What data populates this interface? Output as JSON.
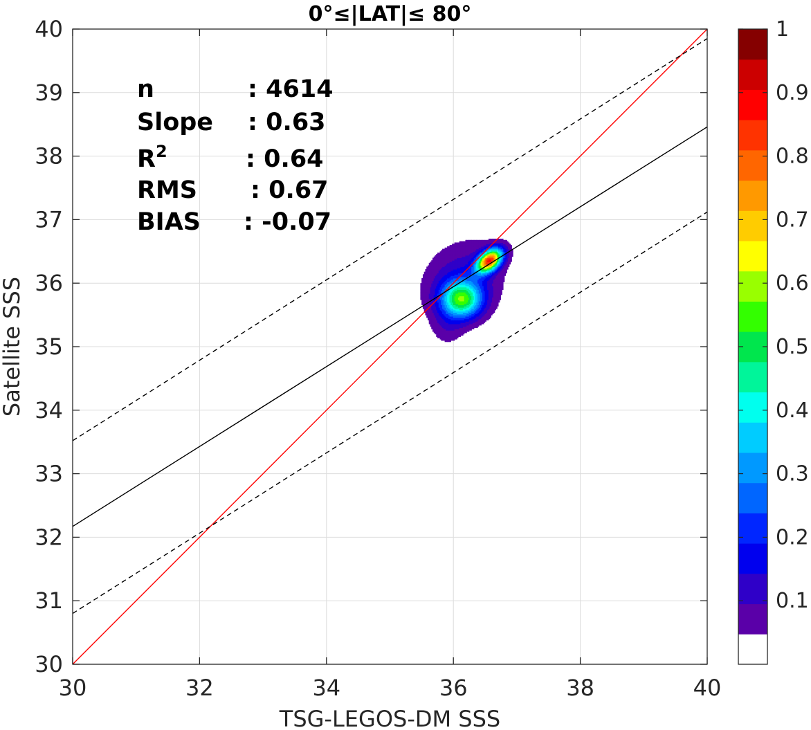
{
  "chart_data": {
    "type": "scatter",
    "title": "0°≤|LAT|≤ 80°",
    "xlabel": "TSG-LEGOS-DM SSS",
    "ylabel": "Satellite SSS",
    "xlim": [
      30,
      40
    ],
    "ylim": [
      30,
      40
    ],
    "xticks": [
      30,
      32,
      34,
      36,
      38,
      40
    ],
    "yticks": [
      30,
      31,
      32,
      33,
      34,
      35,
      36,
      37,
      38,
      39,
      40
    ],
    "grid": true,
    "stats": [
      {
        "name": "n",
        "sep": ": 4614",
        "sup": ""
      },
      {
        "name": "Slope",
        "sep": ": 0.63",
        "sup": ""
      },
      {
        "name": "R",
        "sep": ": 0.64",
        "sup": "2"
      },
      {
        "name": "RMS",
        "sep": ": 0.67",
        "sup": ""
      },
      {
        "name": "BIAS",
        "sep": ": -0.07",
        "sup": ""
      }
    ],
    "lines": [
      {
        "name": "one-to-one",
        "color": "#ff0000",
        "dash": false,
        "points": [
          [
            30,
            30
          ],
          [
            40,
            40
          ]
        ]
      },
      {
        "name": "regression",
        "color": "#000000",
        "dash": false,
        "points": [
          [
            30,
            32.17
          ],
          [
            40,
            38.46
          ]
        ]
      },
      {
        "name": "upper-bound",
        "color": "#000000",
        "dash": true,
        "points": [
          [
            30,
            33.52
          ],
          [
            40,
            39.85
          ]
        ]
      },
      {
        "name": "lower-bound",
        "color": "#000000",
        "dash": true,
        "points": [
          [
            30,
            30.8
          ],
          [
            40,
            37.12
          ]
        ]
      }
    ],
    "density_contours": {
      "peak": [
        36.57,
        36.36
      ],
      "secondary_peak": [
        36.13,
        35.75
      ],
      "levels": [
        0.05,
        0.1,
        0.15,
        0.2,
        0.25,
        0.3,
        0.35,
        0.4,
        0.45,
        0.5,
        0.55,
        0.6,
        0.65,
        0.7,
        0.75,
        0.8,
        0.85,
        0.9,
        0.95
      ]
    },
    "colorbar": {
      "range": [
        0,
        1
      ],
      "ticks": [
        "0.1",
        "0.2",
        "0.3",
        "0.4",
        "0.5",
        "0.6",
        "0.7",
        "0.8",
        "0.9",
        "1"
      ],
      "colors": [
        "#ffffff",
        "#5a00a8",
        "#2f00c8",
        "#0000ee",
        "#0026ff",
        "#0066ff",
        "#0099ff",
        "#00ccff",
        "#00ffee",
        "#00f59a",
        "#00e64d",
        "#33ff00",
        "#99ff00",
        "#ffff00",
        "#ffcc00",
        "#ff9900",
        "#ff6600",
        "#ff3300",
        "#ff0000",
        "#cc0000",
        "#850000"
      ]
    }
  }
}
